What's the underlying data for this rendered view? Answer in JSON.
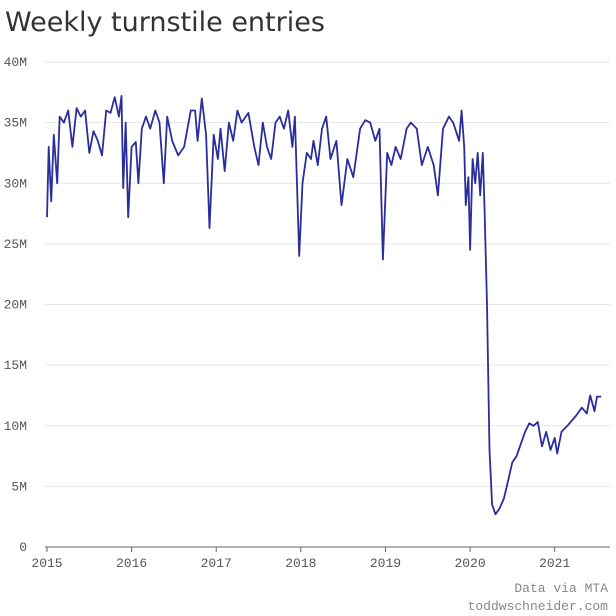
{
  "chart_data": {
    "type": "line",
    "title": "Weekly turnstile entries",
    "annotations": [
      "Data via MTA",
      "toddwschneider.com"
    ],
    "xlim": [
      2015,
      2021.63
    ],
    "xticks": [
      2015,
      2016,
      2017,
      2018,
      2019,
      2020,
      2021
    ],
    "ylim": [
      0,
      40
    ],
    "yticks": [
      {
        "value": 0,
        "label": "0"
      },
      {
        "value": 5,
        "label": "5M"
      },
      {
        "value": 10,
        "label": "10M"
      },
      {
        "value": 15,
        "label": "15M"
      },
      {
        "value": 20,
        "label": "20M"
      },
      {
        "value": 25,
        "label": "25M"
      },
      {
        "value": 30,
        "label": "30M"
      },
      {
        "value": 35,
        "label": "35M"
      },
      {
        "value": 40,
        "label": "40M"
      }
    ],
    "grid": true,
    "x": [
      2015.0,
      2015.02,
      2015.05,
      2015.08,
      2015.12,
      2015.15,
      2015.2,
      2015.25,
      2015.3,
      2015.35,
      2015.4,
      2015.45,
      2015.5,
      2015.55,
      2015.6,
      2015.65,
      2015.7,
      2015.75,
      2015.8,
      2015.85,
      2015.88,
      2015.9,
      2015.93,
      2015.96,
      2016.0,
      2016.05,
      2016.08,
      2016.12,
      2016.17,
      2016.22,
      2016.28,
      2016.33,
      2016.38,
      2016.42,
      2016.48,
      2016.55,
      2016.62,
      2016.7,
      2016.75,
      2016.78,
      2016.83,
      2016.88,
      2016.92,
      2016.97,
      2017.02,
      2017.05,
      2017.1,
      2017.15,
      2017.2,
      2017.25,
      2017.3,
      2017.38,
      2017.45,
      2017.5,
      2017.55,
      2017.6,
      2017.65,
      2017.7,
      2017.75,
      2017.8,
      2017.85,
      2017.9,
      2017.93,
      2017.98,
      2018.02,
      2018.07,
      2018.12,
      2018.15,
      2018.2,
      2018.25,
      2018.3,
      2018.35,
      2018.42,
      2018.48,
      2018.55,
      2018.62,
      2018.7,
      2018.76,
      2018.82,
      2018.88,
      2018.93,
      2018.97,
      2019.02,
      2019.07,
      2019.12,
      2019.18,
      2019.25,
      2019.3,
      2019.37,
      2019.43,
      2019.5,
      2019.57,
      2019.62,
      2019.68,
      2019.75,
      2019.8,
      2019.87,
      2019.9,
      2019.93,
      2019.95,
      2019.98,
      2020.0,
      2020.03,
      2020.06,
      2020.09,
      2020.12,
      2020.15,
      2020.17,
      2020.2,
      2020.23,
      2020.26,
      2020.3,
      2020.35,
      2020.4,
      2020.45,
      2020.5,
      2020.55,
      2020.6,
      2020.65,
      2020.7,
      2020.75,
      2020.8,
      2020.85,
      2020.9,
      2020.95,
      2021.0,
      2021.03,
      2021.08,
      2021.15,
      2021.25,
      2021.32,
      2021.38,
      2021.42,
      2021.47,
      2021.5,
      2021.55
    ],
    "series": [
      {
        "name": "Weekly turnstile entries",
        "color": "#2a2d9c",
        "values": [
          27.2,
          33,
          28.5,
          34,
          30,
          35.5,
          35,
          36,
          33,
          36.2,
          35.5,
          36,
          32.5,
          34.3,
          33.5,
          32.3,
          36,
          35.8,
          37.1,
          35.5,
          37.2,
          29.6,
          35,
          27.2,
          33,
          33.4,
          30,
          34.5,
          35.5,
          34.5,
          36,
          35,
          30,
          35.5,
          33.5,
          32.3,
          33,
          36,
          36,
          33.5,
          37,
          34,
          26.3,
          34,
          32,
          34.5,
          31,
          35,
          33.5,
          36,
          35,
          35.8,
          33,
          31.5,
          35,
          33,
          32,
          35,
          35.5,
          34.5,
          36,
          33,
          35.5,
          24,
          30,
          32.5,
          32,
          33.5,
          31.5,
          34.5,
          35.5,
          32,
          33.5,
          28.2,
          32,
          30.5,
          34.5,
          35.2,
          35,
          33.5,
          34.5,
          23.7,
          32.5,
          31.5,
          33,
          32,
          34.5,
          35,
          34.5,
          31.5,
          33,
          31.5,
          29,
          34.5,
          35.5,
          35,
          33.5,
          36,
          33,
          28.2,
          30.5,
          24.5,
          32,
          30,
          32.5,
          29,
          32.5,
          28,
          20,
          8,
          3.5,
          2.7,
          3.2,
          4,
          5.5,
          7,
          7.5,
          8.5,
          9.5,
          10.2,
          10,
          10.3,
          8.3,
          9.5,
          8,
          9,
          7.7,
          9.5,
          10,
          10.8,
          11.5,
          11,
          12.5,
          11.2,
          12.4,
          12.4
        ]
      }
    ]
  }
}
